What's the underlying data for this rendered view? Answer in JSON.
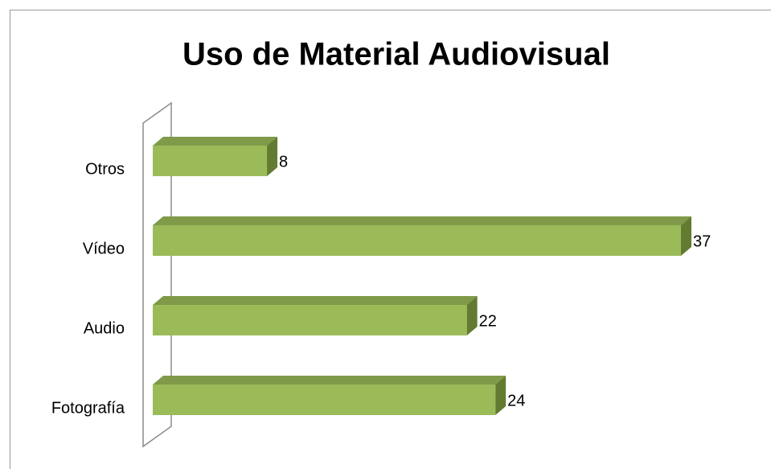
{
  "chart_data": {
    "type": "bar3d_horizontal",
    "title": "Uso de Material Audiovisual",
    "categories": [
      "Otros",
      "Vídeo",
      "Audio",
      "Fotografía"
    ],
    "values": [
      8,
      37,
      22,
      24
    ],
    "color": "#9bbb59"
  }
}
